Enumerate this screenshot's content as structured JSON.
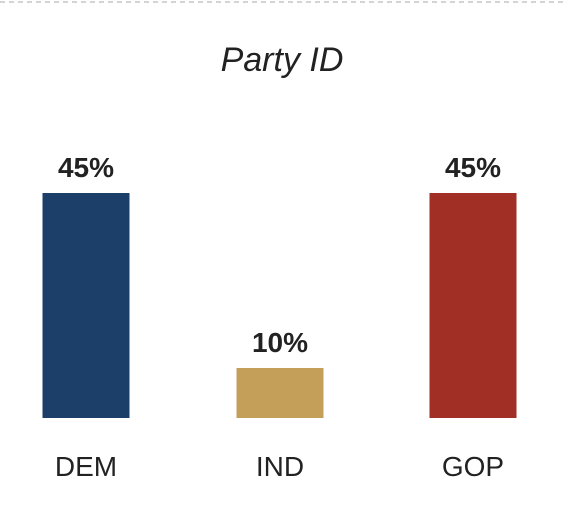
{
  "chart_data": {
    "type": "bar",
    "title": "Party ID",
    "categories": [
      "DEM",
      "IND",
      "GOP"
    ],
    "values": [
      45,
      10,
      45
    ],
    "value_labels": [
      "45%",
      "10%",
      "45%"
    ],
    "colors": [
      "#1c3f6a",
      "#c39f59",
      "#a22f26"
    ],
    "ylim": [
      0,
      45
    ],
    "grid": false,
    "legend": "none",
    "xlabel": "",
    "ylabel": ""
  }
}
